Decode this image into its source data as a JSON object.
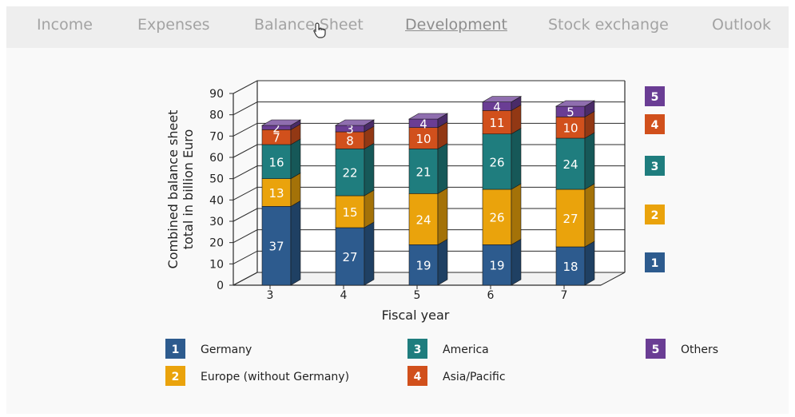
{
  "nav": {
    "items": [
      {
        "label": "Income",
        "active": false
      },
      {
        "label": "Expenses",
        "active": false
      },
      {
        "label": "Balance Sheet",
        "active": false
      },
      {
        "label": "Development",
        "active": true
      },
      {
        "label": "Stock exchange",
        "active": false
      },
      {
        "label": "Outlook",
        "active": false
      }
    ]
  },
  "chart_data": {
    "type": "bar",
    "stacked": true,
    "style": "3d",
    "xlabel": "Fiscal year",
    "ylabel_line1": "Combined balance sheet",
    "ylabel_line2": "total in billion Euro",
    "ylim": [
      0,
      90
    ],
    "yticks": [
      0,
      10,
      20,
      30,
      40,
      50,
      60,
      70,
      80,
      90
    ],
    "categories": [
      "3",
      "4",
      "5",
      "6",
      "7"
    ],
    "series": [
      {
        "name": "Germany",
        "key": "1",
        "color": "#2d5b8e",
        "values": [
          37,
          27,
          19,
          19,
          18
        ]
      },
      {
        "name": "Europe (without Germany)",
        "key": "2",
        "color": "#eaa30c",
        "values": [
          13,
          15,
          24,
          26,
          27
        ]
      },
      {
        "name": "America",
        "key": "3",
        "color": "#1f7d7e",
        "values": [
          16,
          22,
          21,
          26,
          24
        ]
      },
      {
        "name": "Asia/Pacific",
        "key": "4",
        "color": "#d1501c",
        "values": [
          7,
          8,
          10,
          11,
          10
        ]
      },
      {
        "name": "Others",
        "key": "5",
        "color": "#6a3d94",
        "values": [
          2,
          3,
          4,
          4,
          5
        ]
      }
    ],
    "grid": true,
    "legend_position": "bottom"
  }
}
